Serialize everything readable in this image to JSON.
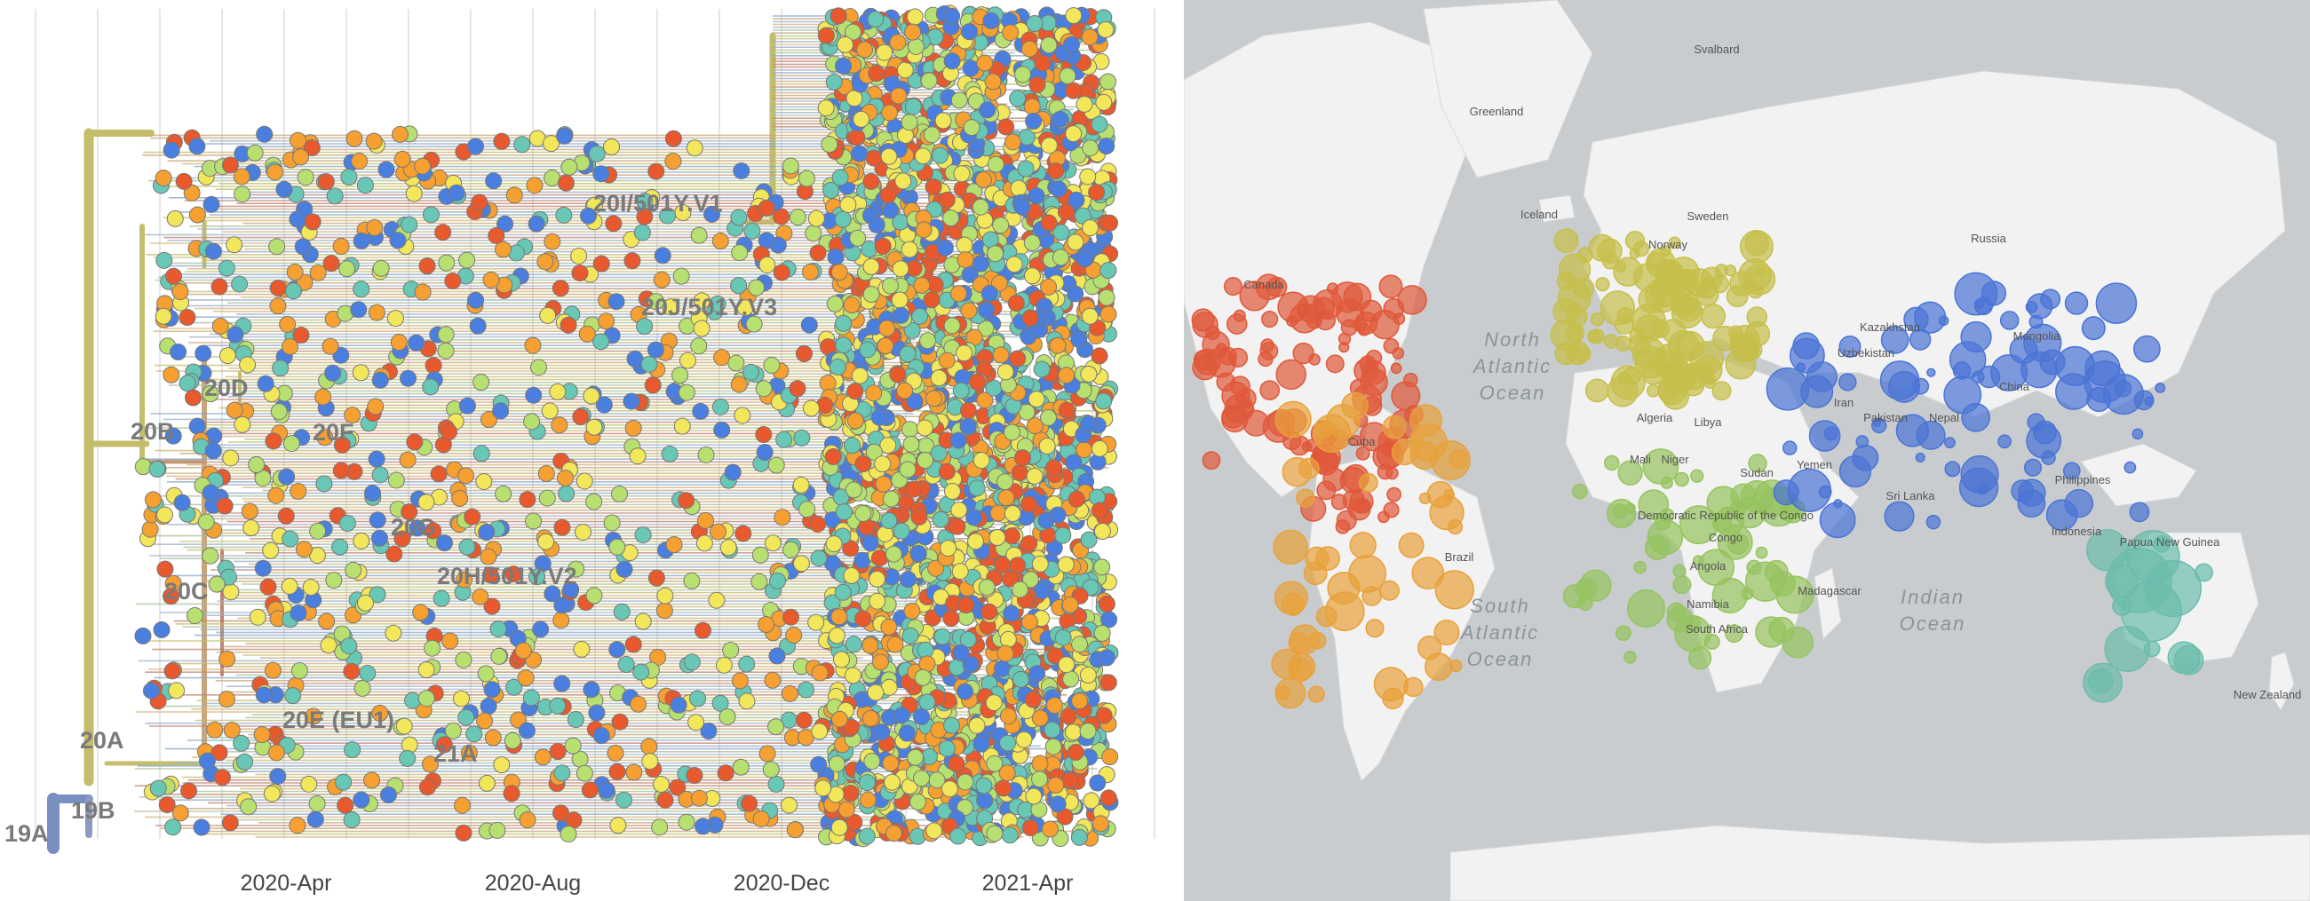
{
  "tree": {
    "clade_labels": [
      {
        "id": "19A",
        "text": "19A"
      },
      {
        "id": "19B",
        "text": "19B"
      },
      {
        "id": "20A",
        "text": "20A"
      },
      {
        "id": "20B",
        "text": "20B"
      },
      {
        "id": "20C",
        "text": "20C"
      },
      {
        "id": "20D",
        "text": "20D"
      },
      {
        "id": "20E",
        "text": "20E (EU1)"
      },
      {
        "id": "20F",
        "text": "20F"
      },
      {
        "id": "20G",
        "text": "20G"
      },
      {
        "id": "20H",
        "text": "20H/501Y.V2"
      },
      {
        "id": "20I",
        "text": "20I/501Y.V1"
      },
      {
        "id": "20J",
        "text": "20J/501Y.V3"
      },
      {
        "id": "21A",
        "text": "21A"
      }
    ],
    "axis_ticks": [
      "2020-Apr",
      "2020-Aug",
      "2020-Dec",
      "2021-Apr"
    ]
  },
  "map": {
    "countries": [
      "Svalbard",
      "Greenland",
      "Iceland",
      "Canada",
      "Sweden",
      "Norway",
      "Russia",
      "Kazakhstan",
      "Mongolia",
      "Uzbekistan",
      "Iran",
      "China",
      "Pakistan",
      "Nepal",
      "Cuba",
      "Algeria",
      "Libya",
      "Mali",
      "Niger",
      "Sudan",
      "Yemen",
      "Philippines",
      "Sri Lanka",
      "Democratic Republic of the Congo",
      "Congo",
      "Angola",
      "Brazil",
      "Namibia",
      "South Africa",
      "Madagascar",
      "Indonesia",
      "Papua New Guinea",
      "New Zealand"
    ],
    "oceans": [
      {
        "id": "north-atlantic",
        "lines": [
          "North",
          "Atlantic",
          "Ocean"
        ]
      },
      {
        "id": "south-atlantic",
        "lines": [
          "South",
          "Atlantic",
          "Ocean"
        ]
      },
      {
        "id": "indian",
        "lines": [
          "Indian",
          "Ocean"
        ]
      }
    ]
  },
  "colors": {
    "north_america": "#e0583a",
    "south_america": "#e8a13a",
    "europe": "#c6bf4a",
    "africa": "#96c35e",
    "asia": "#4a74d6",
    "oceania": "#6bbcac",
    "tip_palette": [
      "#e8592e",
      "#f5a030",
      "#f2e65a",
      "#b8e070",
      "#68c7b5",
      "#4a7fe0"
    ],
    "land": "#f2f2f2",
    "water": "#c8ccce"
  }
}
